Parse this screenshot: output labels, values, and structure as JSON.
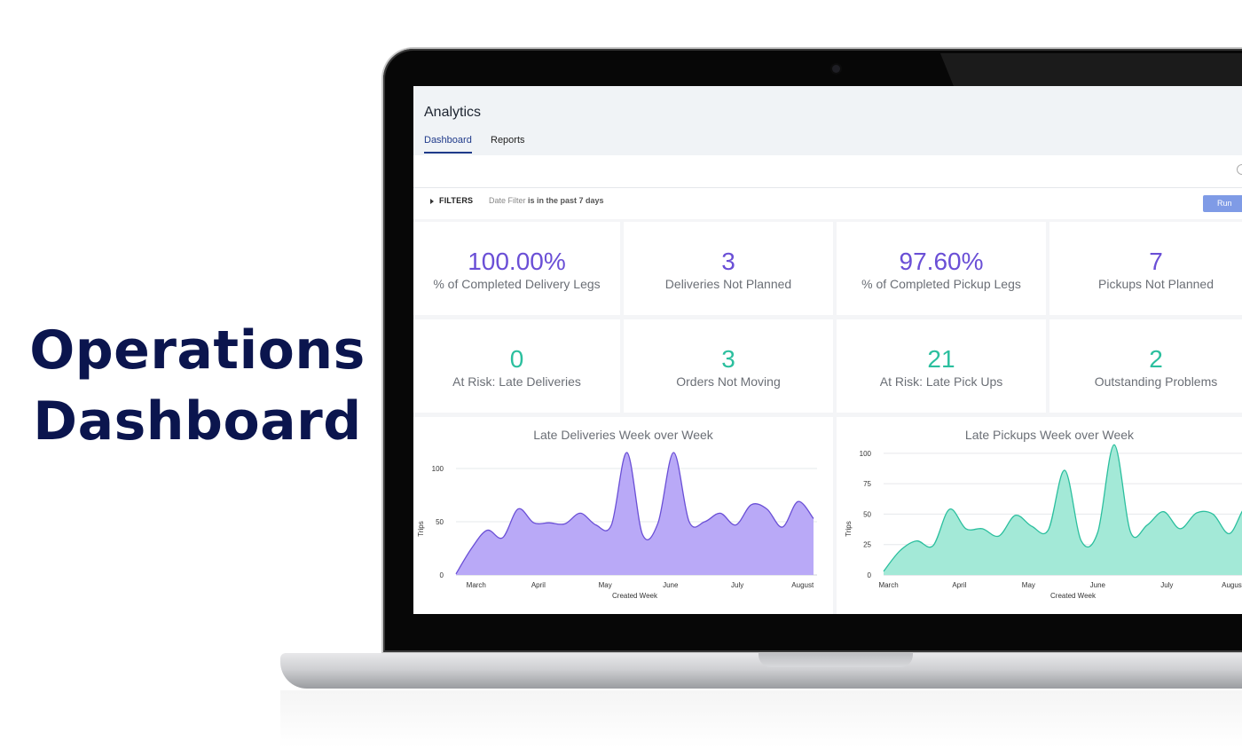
{
  "hero": {
    "line1": "Operations",
    "line2": "Dashboard"
  },
  "app": {
    "title": "Analytics",
    "tabs": [
      {
        "label": "Dashboard",
        "active": true
      },
      {
        "label": "Reports",
        "active": false
      }
    ]
  },
  "filters": {
    "label": "FILTERS",
    "field": "Date Filter",
    "condition": "is in the past 7 days",
    "run_label": "Run"
  },
  "colors": {
    "purple": "#6a4fd6",
    "teal": "#2bbf9e",
    "accent_button": "#7f9be6",
    "hero_text": "#0b154e"
  },
  "tiles": [
    {
      "value": "100.00%",
      "label": "% of Completed Delivery Legs",
      "color": "purple"
    },
    {
      "value": "3",
      "label": "Deliveries Not Planned",
      "color": "purple"
    },
    {
      "value": "97.60%",
      "label": "% of Completed Pickup Legs",
      "color": "purple"
    },
    {
      "value": "7",
      "label": "Pickups Not Planned",
      "color": "purple"
    },
    {
      "value": "0",
      "label": "At Risk: Late Deliveries",
      "color": "teal"
    },
    {
      "value": "3",
      "label": "Orders Not Moving",
      "color": "teal"
    },
    {
      "value": "21",
      "label": "At Risk: Late Pick Ups",
      "color": "teal"
    },
    {
      "value": "2",
      "label": "Outstanding Problems",
      "color": "teal"
    }
  ],
  "chart_data": [
    {
      "type": "area",
      "title": "Late Deliveries Week over Week",
      "xlabel": "Created Week",
      "ylabel": "Trips",
      "ylim": [
        0,
        120
      ],
      "yticks": [
        0,
        50,
        100
      ],
      "xtick_labels": [
        "March",
        "April",
        "May",
        "June",
        "July",
        "August"
      ],
      "xtick_positions": [
        1.3,
        5.3,
        9.6,
        13.8,
        18.1,
        22.3
      ],
      "x": [
        0,
        1,
        2,
        3,
        4,
        5,
        6,
        7,
        8,
        9,
        10,
        11,
        12,
        13,
        14,
        15,
        16,
        17,
        18,
        19,
        20,
        21,
        22,
        23
      ],
      "values": [
        1,
        25,
        42,
        35,
        62,
        49,
        49,
        48,
        58,
        47,
        47,
        115,
        38,
        49,
        115,
        50,
        50,
        58,
        47,
        66,
        62,
        45,
        69,
        53
      ],
      "color": "#6a4fd6",
      "fill": "#b9a9f7",
      "grid": true
    },
    {
      "type": "area",
      "title": "Late Pickups Week over Week",
      "xlabel": "Created Week",
      "ylabel": "Trips",
      "ylim": [
        0,
        105
      ],
      "yticks": [
        0,
        25,
        50,
        75,
        100
      ],
      "xtick_labels": [
        "March",
        "April",
        "May",
        "June",
        "July",
        "August"
      ],
      "xtick_positions": [
        0.3,
        4.6,
        8.8,
        13,
        17.2,
        21.2
      ],
      "x": [
        0,
        1,
        2,
        3,
        4,
        5,
        6,
        7,
        8,
        9,
        10,
        11,
        12,
        13,
        14,
        15,
        16,
        17,
        18,
        19,
        20,
        21,
        22,
        23
      ],
      "values": [
        3,
        20,
        28,
        24,
        54,
        38,
        38,
        32,
        49,
        40,
        37,
        86,
        28,
        35,
        107,
        35,
        41,
        52,
        38,
        51,
        50,
        34,
        56,
        48
      ],
      "color": "#2bbf9e",
      "fill": "#a3e9d7",
      "grid": true
    }
  ]
}
